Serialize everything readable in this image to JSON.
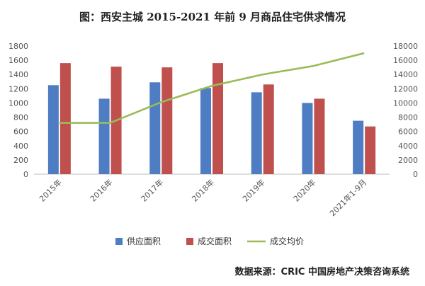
{
  "title": "图：西安主城 2015-2021 年前 9 月商品住宅供求情况",
  "source": "数据来源：CRIC 中国房地产决策咨询系统",
  "colors": {
    "supply": "#4E7DC4",
    "deal": "#C0504D",
    "price": "#9BBB59"
  },
  "chart_data": {
    "type": "bar",
    "categories": [
      "2015年",
      "2016年",
      "2017年",
      "2018年",
      "2019年",
      "2020年",
      "2021年1-9月"
    ],
    "series": [
      {
        "name": "供应面积",
        "type": "bar",
        "axis": "left",
        "values": [
          1250,
          1060,
          1290,
          1210,
          1150,
          1000,
          750
        ]
      },
      {
        "name": "成交面积",
        "type": "bar",
        "axis": "left",
        "values": [
          1560,
          1510,
          1500,
          1560,
          1260,
          1060,
          670
        ]
      },
      {
        "name": "成交均价",
        "type": "line",
        "axis": "right",
        "values": [
          7200,
          7200,
          10100,
          12400,
          14000,
          15200,
          17000
        ]
      }
    ],
    "y_left": {
      "min": 0,
      "max": 1800,
      "ticks": [
        0,
        200,
        400,
        600,
        800,
        1000,
        1200,
        1400,
        1600,
        1800
      ]
    },
    "y_right": {
      "min": 0,
      "max": 18000,
      "ticks": [
        0,
        2000,
        4000,
        6000,
        8000,
        10000,
        12000,
        14000,
        16000,
        18000
      ]
    },
    "legend": [
      "供应面积",
      "成交面积",
      "成交均价"
    ],
    "legend_position": "bottom",
    "grid": false
  }
}
